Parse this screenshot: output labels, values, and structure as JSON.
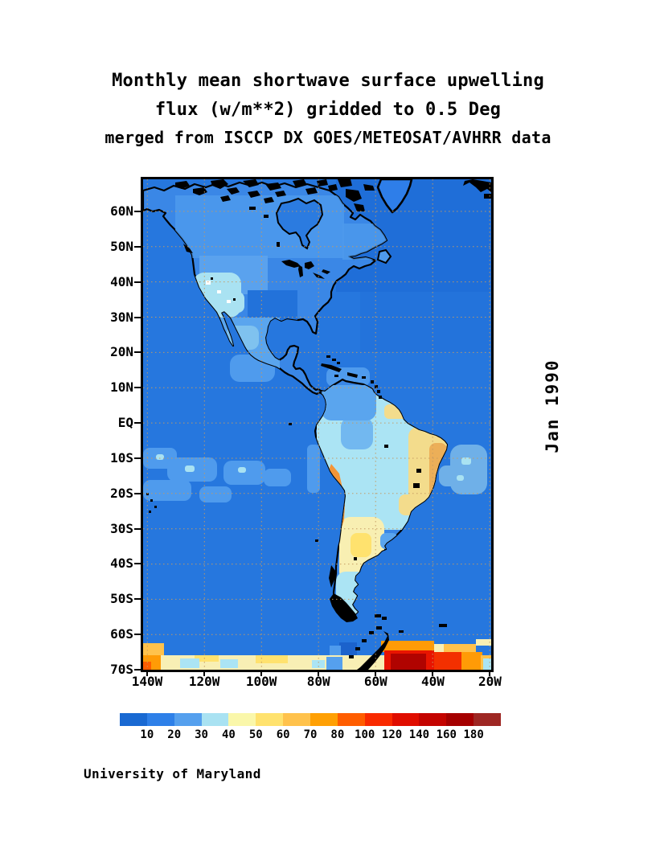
{
  "title": {
    "line1": "Monthly mean shortwave surface upwelling",
    "line2": "flux (w/m**2) gridded to 0.5 Deg",
    "line3": "merged from ISCCP DX GOES/METEOSAT/AVHRR data"
  },
  "side_label": "Jan 1990",
  "credit": "University of Maryland",
  "map": {
    "lat_ticks": [
      "60N",
      "50N",
      "40N",
      "30N",
      "20N",
      "10N",
      "EQ",
      "10S",
      "20S",
      "30S",
      "40S",
      "50S",
      "60S",
      "70S"
    ],
    "lon_ticks": [
      "140W",
      "120W",
      "100W",
      "80W",
      "60W",
      "40W",
      "20W"
    ],
    "ocean_color": "#2677DE",
    "coast_color": "#000000",
    "grid_color": "#C49A62"
  },
  "colorbar": {
    "values": [
      "10",
      "20",
      "30",
      "40",
      "50",
      "60",
      "70",
      "80",
      "100",
      "120",
      "140",
      "160",
      "180"
    ],
    "colors": [
      "#1969D2",
      "#2E80E8",
      "#55A0EE",
      "#A9E2F2",
      "#FAF7AA",
      "#FFE26E",
      "#FFC24C",
      "#FFA004",
      "#FF5D00",
      "#F92A00",
      "#E00D00",
      "#C40400",
      "#A50000",
      "#9E2723"
    ]
  },
  "chart_data": {
    "type": "heatmap",
    "title": "Monthly mean shortwave surface upwelling flux (w/m**2) gridded to 0.5 Deg",
    "subtitle": "merged from ISCCP DX GOES/METEOSAT/AVHRR data",
    "time": "Jan 1990",
    "units": "w/m**2",
    "source_text": "University of Maryland",
    "projection": "lat-lon grid, 0.5 degree",
    "lon_range_deg": [
      -141.5,
      -19.5
    ],
    "lat_range_deg": [
      -70,
      69
    ],
    "lat_tick_labels": [
      "60N",
      "50N",
      "40N",
      "30N",
      "20N",
      "10N",
      "EQ",
      "10S",
      "20S",
      "30S",
      "40S",
      "50S",
      "60S",
      "70S"
    ],
    "lon_tick_labels": [
      "140W",
      "120W",
      "100W",
      "80W",
      "60W",
      "40W",
      "20W"
    ],
    "grid": true,
    "legend_position": "bottom",
    "colorbar_bin_edges": [
      10,
      20,
      30,
      40,
      50,
      60,
      70,
      80,
      100,
      120,
      140,
      160,
      180
    ],
    "colorbar_colors": [
      "#1969D2",
      "#2E80E8",
      "#55A0EE",
      "#A9E2F2",
      "#FAF7AA",
      "#FFE26E",
      "#FFC24C",
      "#FFA004",
      "#FF5D00",
      "#F92A00",
      "#E00D00",
      "#C40400",
      "#A50000",
      "#9E2723"
    ],
    "approx_region_values": [
      {
        "region": "open ocean (Pacific and Atlantic)",
        "flux": "20-30"
      },
      {
        "region": "tropical Pacific patches 0-20S",
        "flux": "30-40"
      },
      {
        "region": "Canada / eastern US land",
        "flux": "20-40"
      },
      {
        "region": "western US mountains",
        "flux": "40-50 (pale cyan patches)"
      },
      {
        "region": "Mexico / Central America",
        "flux": "30-40"
      },
      {
        "region": "Amazon basin",
        "flux": "40-50"
      },
      {
        "region": "eastern Brazil",
        "flux": "50-70"
      },
      {
        "region": "Andes (Peru/Bolivia/N Chile)",
        "flux": "70-90"
      },
      {
        "region": "central Argentina",
        "flux": "50-60"
      },
      {
        "region": "Antarctic sea-ice band 63S-70S near 60W-35W",
        "flux": "100-180"
      },
      {
        "region": "Antarctic band elsewhere",
        "flux": "40-80"
      }
    ]
  }
}
